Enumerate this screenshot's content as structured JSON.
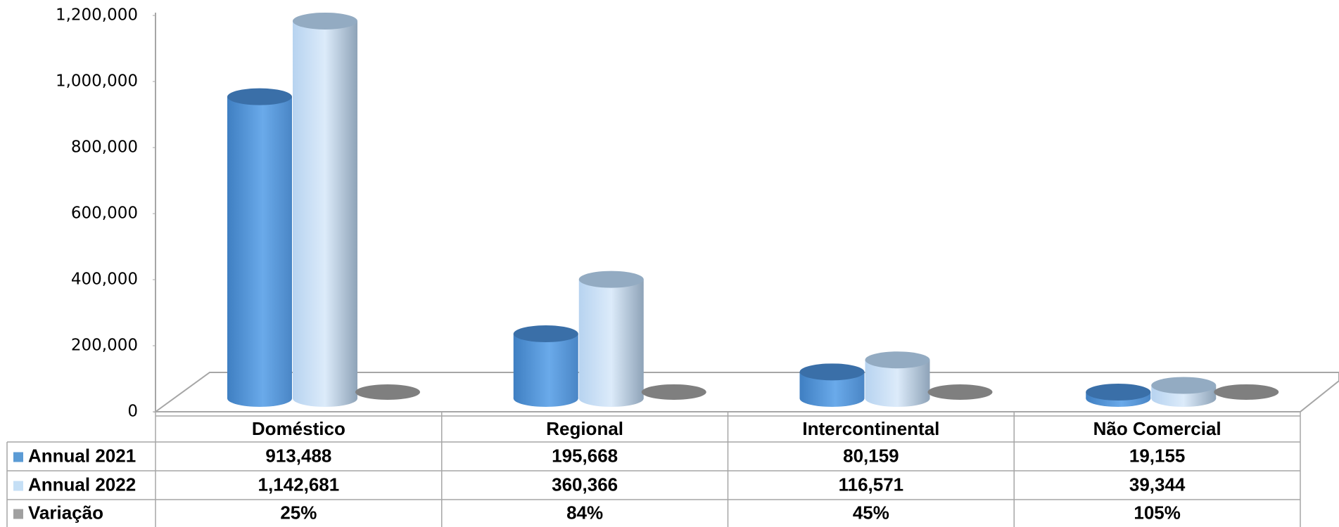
{
  "chart_data": {
    "type": "bar3d",
    "categories": [
      "Doméstico",
      "Regional",
      "Intercontinental",
      "Não Comercial"
    ],
    "series": [
      {
        "name": "Annual 2021",
        "color": "#5b9bd5",
        "values": [
          913488,
          195668,
          80159,
          19155
        ],
        "value_labels": [
          "913,488",
          "195,668",
          "80,159",
          "19,155"
        ]
      },
      {
        "name": "Annual 2022",
        "color": "#c5dff5",
        "values": [
          1142681,
          360366,
          116571,
          39344
        ],
        "value_labels": [
          "1,142,681",
          "360,366",
          "116,571",
          "39,344"
        ]
      },
      {
        "name": "Variação",
        "color": "#a0a0a0",
        "values": [
          25,
          84,
          45,
          105
        ],
        "value_labels": [
          "25%",
          "84%",
          "45%",
          "105%"
        ]
      }
    ],
    "ylim": [
      0,
      1200000
    ],
    "yticks": [
      0,
      {
        "value": 200000,
        "label": "200,000"
      },
      {
        "value": 400000,
        "label": "400,000"
      },
      {
        "value": 600000,
        "label": "600,000"
      },
      {
        "value": 800000,
        "label": "800,000"
      },
      {
        "value": 1000000,
        "label": "1,000,000"
      },
      {
        "value": 1200000,
        "label": "1,200,000"
      }
    ]
  }
}
